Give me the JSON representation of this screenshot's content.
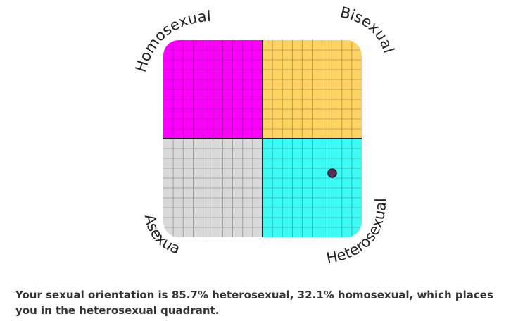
{
  "quadrants": {
    "top_left": {
      "label": "Homosexual",
      "color": "#ff00ff"
    },
    "top_right": {
      "label": "Bisexual",
      "color": "#ffd264"
    },
    "bottom_left": {
      "label": "Asexual",
      "color": "#d9d9d9"
    },
    "bottom_right": {
      "label": "Heterosexual",
      "color": "#3cfbf5"
    }
  },
  "marker": {
    "heterosexual_percent": 85.7,
    "homosexual_percent": 32.1,
    "color": "#5b2a5e"
  },
  "grid_cells_per_quadrant": 10,
  "result_text": "Your sexual orientation is 85.7% heterosexual, 32.1% homosexual, which places you in the heterosexual quadrant."
}
